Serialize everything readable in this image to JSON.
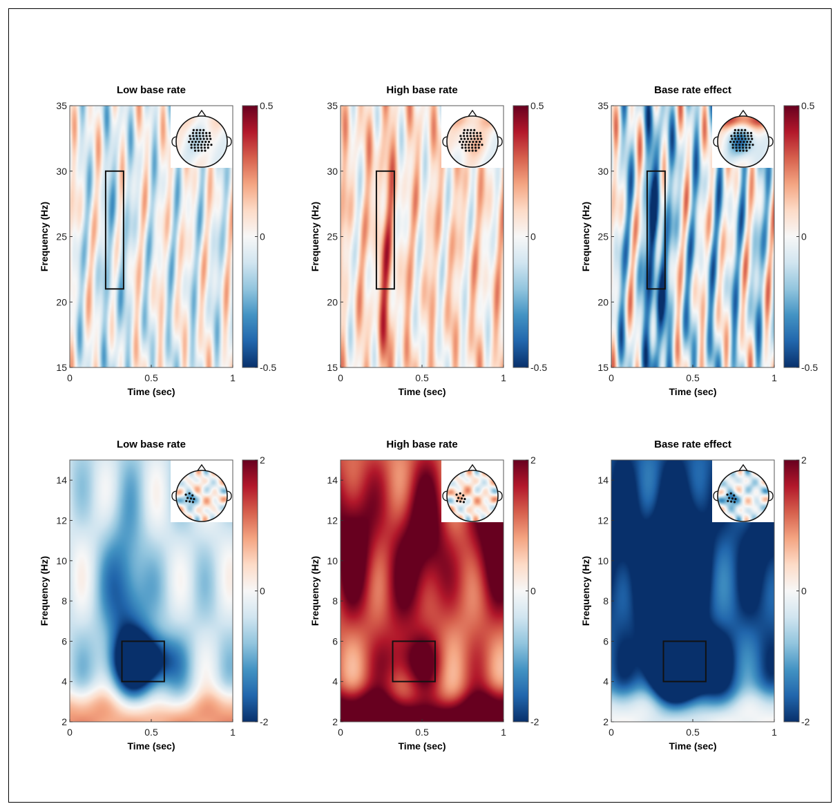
{
  "colors": {
    "colormap": [
      "#08306b",
      "#2166ac",
      "#4393c3",
      "#92c5de",
      "#d1e5f0",
      "#f7f7f7",
      "#fddbc7",
      "#f4a582",
      "#d6604d",
      "#b2182b",
      "#67001f"
    ],
    "roi_box": "#111111",
    "electrode": "#111111"
  },
  "chart_data": [
    {
      "type": "heatmap",
      "id": "beta-low",
      "title": "Low base rate",
      "xlabel": "Time (sec)",
      "ylabel": "Frequency (Hz)",
      "xlim": [
        0,
        1
      ],
      "ylim": [
        15,
        35
      ],
      "xticks": [
        0,
        0.5,
        1
      ],
      "xtick_labels": [
        "0",
        "0.5",
        "1"
      ],
      "yticks": [
        15,
        20,
        25,
        30,
        35
      ],
      "ytick_labels": [
        "15",
        "20",
        "25",
        "30",
        "35"
      ],
      "clim": [
        -0.5,
        0.5
      ],
      "cbar_ticks": [
        -0.5,
        0,
        0.5
      ],
      "cbar_tick_labels": [
        "-0.5",
        "0",
        "0.5"
      ],
      "roi": {
        "x": [
          0.22,
          0.33
        ],
        "y": [
          21,
          30
        ]
      },
      "pattern": "beta",
      "mean": -0.03,
      "stripe_amp": 0.13,
      "roi_val": -0.12,
      "topo": {
        "front": 0.05,
        "center": -0.1,
        "cluster": "central"
      }
    },
    {
      "type": "heatmap",
      "id": "beta-high",
      "title": "High base rate",
      "xlabel": "Time (sec)",
      "ylabel": "Frequency (Hz)",
      "xlim": [
        0,
        1
      ],
      "ylim": [
        15,
        35
      ],
      "xticks": [
        0,
        0.5,
        1
      ],
      "xtick_labels": [
        "0",
        "0.5",
        "1"
      ],
      "yticks": [
        15,
        20,
        25,
        30,
        35
      ],
      "ytick_labels": [
        "15",
        "20",
        "25",
        "30",
        "35"
      ],
      "clim": [
        -0.5,
        0.5
      ],
      "cbar_ticks": [
        -0.5,
        0,
        0.5
      ],
      "cbar_tick_labels": [
        "-0.5",
        "0",
        "0.5"
      ],
      "roi": {
        "x": [
          0.22,
          0.33
        ],
        "y": [
          21,
          30
        ]
      },
      "pattern": "beta",
      "mean": 0.06,
      "stripe_amp": 0.11,
      "roi_val": 0.18,
      "topo": {
        "front": 0.12,
        "center": 0.14,
        "cluster": "central"
      }
    },
    {
      "type": "heatmap",
      "id": "beta-effect",
      "title": "Base rate effect",
      "xlabel": "Time (sec)",
      "ylabel": "Frequency (Hz)",
      "xlim": [
        0,
        1
      ],
      "ylim": [
        15,
        35
      ],
      "xticks": [
        0,
        0.5,
        1
      ],
      "xtick_labels": [
        "0",
        "0.5",
        "1"
      ],
      "yticks": [
        15,
        20,
        25,
        30,
        35
      ],
      "ytick_labels": [
        "15",
        "20",
        "25",
        "30",
        "35"
      ],
      "clim": [
        -0.5,
        0.5
      ],
      "cbar_ticks": [
        -0.5,
        0,
        0.5
      ],
      "cbar_tick_labels": [
        "-0.5",
        "0",
        "0.5"
      ],
      "roi": {
        "x": [
          0.22,
          0.33
        ],
        "y": [
          21,
          30
        ]
      },
      "pattern": "beta",
      "mean": -0.08,
      "stripe_amp": 0.2,
      "roi_val": -0.4,
      "topo": {
        "front": 0.3,
        "center": -0.35,
        "cluster": "central"
      }
    },
    {
      "type": "heatmap",
      "id": "theta-low",
      "title": "Low base rate",
      "xlabel": "Time (sec)",
      "ylabel": "Frequency (Hz)",
      "xlim": [
        0,
        1
      ],
      "ylim": [
        2,
        15
      ],
      "xticks": [
        0,
        0.5,
        1
      ],
      "xtick_labels": [
        "0",
        "0.5",
        "1"
      ],
      "yticks": [
        2,
        4,
        6,
        8,
        10,
        12,
        14
      ],
      "ytick_labels": [
        "2",
        "4",
        "6",
        "8",
        "10",
        "12",
        "14"
      ],
      "clim": [
        -2,
        2
      ],
      "cbar_ticks": [
        -2,
        0,
        2
      ],
      "cbar_tick_labels": [
        "-2",
        "0",
        "2"
      ],
      "roi": {
        "x": [
          0.32,
          0.58
        ],
        "y": [
          4,
          6
        ]
      },
      "pattern": "theta",
      "mean": -0.12,
      "blob": -0.75,
      "low_band": 0.35,
      "upper": 0.05,
      "topo": {
        "front": 0.0,
        "center": 0.0,
        "cluster": "left"
      }
    },
    {
      "type": "heatmap",
      "id": "theta-high",
      "title": "High base rate",
      "xlabel": "Time (sec)",
      "ylabel": "Frequency (Hz)",
      "xlim": [
        0,
        1
      ],
      "ylim": [
        2,
        15
      ],
      "xticks": [
        0,
        0.5,
        1
      ],
      "xtick_labels": [
        "0",
        "0.5",
        "1"
      ],
      "yticks": [
        2,
        4,
        6,
        8,
        10,
        12,
        14
      ],
      "ytick_labels": [
        "2",
        "4",
        "6",
        "8",
        "10",
        "12",
        "14"
      ],
      "clim": [
        -2,
        2
      ],
      "cbar_ticks": [
        -2,
        0,
        2
      ],
      "cbar_tick_labels": [
        "-2",
        "0",
        "2"
      ],
      "roi": {
        "x": [
          0.32,
          0.58
        ],
        "y": [
          4,
          6
        ]
      },
      "pattern": "theta",
      "mean": 0.25,
      "blob": 0.25,
      "low_band": 0.4,
      "upper": 0.35,
      "topo": {
        "front": 0.05,
        "center": 0.05,
        "cluster": "left"
      }
    },
    {
      "type": "heatmap",
      "id": "theta-effect",
      "title": "Base rate effect",
      "xlabel": "Time (sec)",
      "ylabel": "Frequency (Hz)",
      "xlim": [
        0,
        1
      ],
      "ylim": [
        2,
        15
      ],
      "xticks": [
        0,
        0.5,
        1
      ],
      "xtick_labels": [
        "0",
        "0.5",
        "1"
      ],
      "yticks": [
        2,
        4,
        6,
        8,
        10,
        12,
        14
      ],
      "ytick_labels": [
        "2",
        "4",
        "6",
        "8",
        "10",
        "12",
        "14"
      ],
      "clim": [
        -2,
        2
      ],
      "cbar_ticks": [
        -2,
        0,
        2
      ],
      "cbar_tick_labels": [
        "-2",
        "0",
        "2"
      ],
      "roi": {
        "x": [
          0.32,
          0.58
        ],
        "y": [
          4,
          6
        ]
      },
      "pattern": "theta",
      "mean": -0.4,
      "blob": -1.5,
      "low_band": 0.4,
      "upper": -0.2,
      "topo": {
        "front": -0.1,
        "center": -0.15,
        "cluster": "left"
      }
    }
  ]
}
